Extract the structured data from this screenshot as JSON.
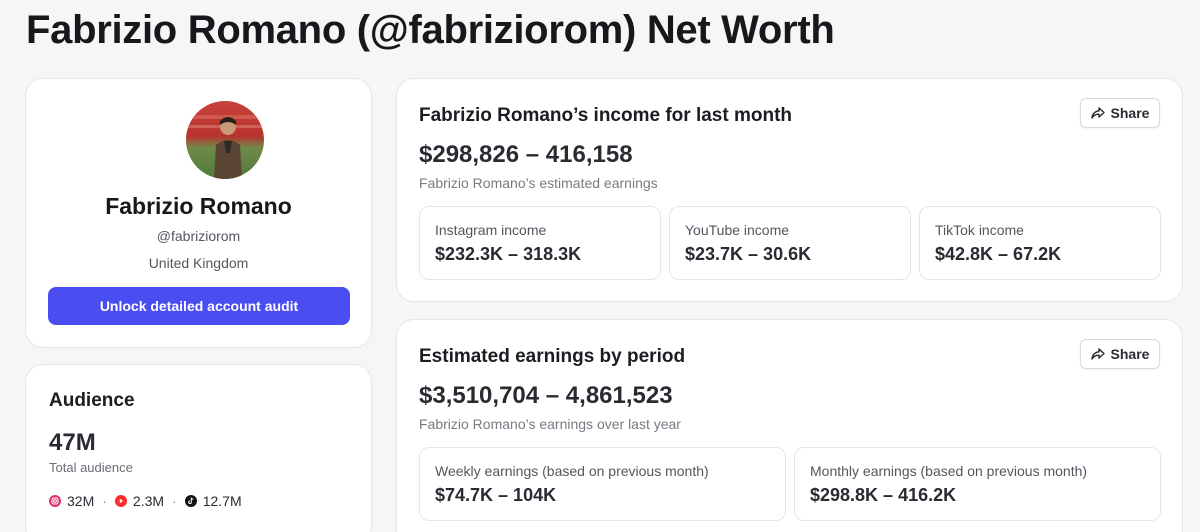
{
  "page": {
    "title": "Fabrizio Romano (@fabriziorom) Net Worth"
  },
  "profile": {
    "name": "Fabrizio Romano",
    "handle": "@fabriziorom",
    "country": "United Kingdom",
    "cta_label": "Unlock detailed account audit",
    "cta_color": "#4a4ef0"
  },
  "audience": {
    "title": "Audience",
    "total": "47M",
    "total_label": "Total audience",
    "platforms": [
      {
        "icon": "instagram-icon",
        "value": "32M",
        "color": "#e1306c"
      },
      {
        "icon": "youtube-icon",
        "value": "2.3M",
        "color": "#ff2a2a"
      },
      {
        "icon": "tiktok-icon",
        "value": "12.7M",
        "color": "#111111"
      }
    ]
  },
  "monthly_income": {
    "title": "Fabrizio Romano’s income for last month",
    "share_label": "Share",
    "range": "$298,826 – 416,158",
    "subtitle": "Fabrizio Romano’s estimated earnings",
    "items": [
      {
        "label": "Instagram income",
        "value": "$232.3K – 318.3K"
      },
      {
        "label": "YouTube income",
        "value": "$23.7K – 30.6K"
      },
      {
        "label": "TikTok income",
        "value": "$42.8K – 67.2K"
      }
    ]
  },
  "period_earnings": {
    "title": "Estimated earnings by period",
    "share_label": "Share",
    "range": "$3,510,704 – 4,861,523",
    "subtitle": "Fabrizio Romano’s earnings over last year",
    "items": [
      {
        "label": "Weekly earnings (based on previous month)",
        "value": "$74.7K – 104K"
      },
      {
        "label": "Monthly earnings (based on previous month)",
        "value": "$298.8K – 416.2K"
      }
    ]
  }
}
